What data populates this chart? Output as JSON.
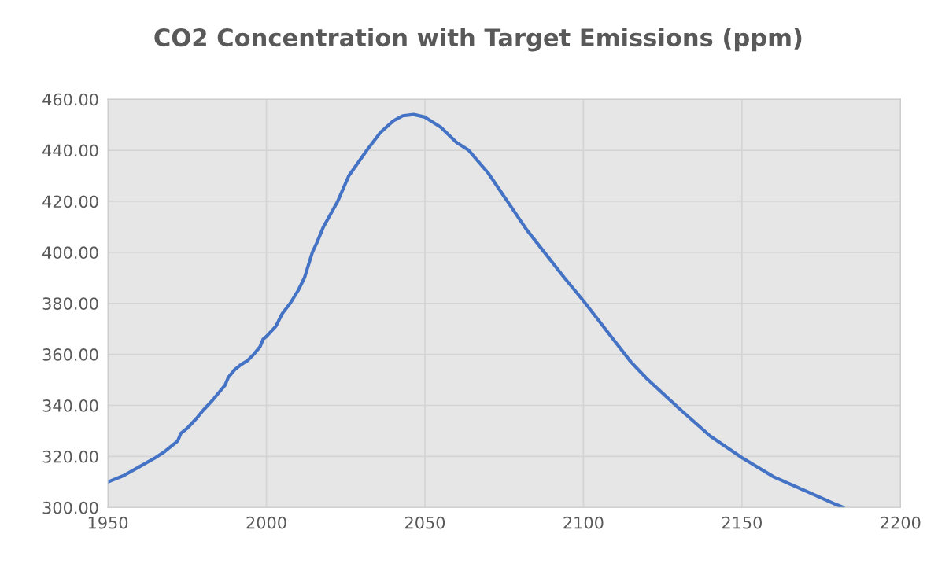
{
  "chart_data": {
    "type": "line",
    "title": "CO2 Concentration with Target Emissions (ppm)",
    "x": [
      1950,
      1955,
      1960,
      1965,
      1968,
      1970,
      1972,
      1973,
      1975,
      1978,
      1980,
      1983,
      1985,
      1987,
      1988,
      1990,
      1992,
      1994,
      1996,
      1998,
      1999,
      2000,
      2003,
      2005,
      2007.5,
      2010,
      2012,
      2014.5,
      2016,
      2018,
      2022.5,
      2026,
      2031.7,
      2036,
      2040,
      2043,
      2046.5,
      2050,
      2055,
      2060,
      2063.8,
      2070,
      2076,
      2082,
      2087.7,
      2094,
      2100,
      2105,
      2110,
      2115,
      2120,
      2130,
      2140,
      2150,
      2160,
      2170,
      2180,
      2182
    ],
    "series": [
      {
        "color": "#4472c4",
        "values": [
          310,
          312.5,
          316,
          319.5,
          322,
          324,
          326,
          329,
          331,
          335,
          338,
          342,
          345,
          348,
          351,
          354,
          356,
          357.5,
          360,
          363,
          366,
          367,
          371,
          376,
          380,
          385,
          390,
          400,
          404,
          410,
          420,
          430,
          440,
          447,
          451.5,
          453.5,
          454,
          453,
          449,
          443,
          440,
          431,
          420,
          409,
          400,
          390,
          381,
          373,
          365,
          357,
          350.5,
          339,
          328,
          319.5,
          312,
          306.5,
          301,
          300
        ]
      }
    ],
    "xlim": [
      1950,
      2200
    ],
    "xticks": [
      1950,
      2000,
      2050,
      2100,
      2150,
      2200
    ],
    "ylim": [
      300,
      460
    ],
    "yticks": [
      {
        "value": 300,
        "label": "300.00"
      },
      {
        "value": 320,
        "label": "320.00"
      },
      {
        "value": 340,
        "label": "340.00"
      },
      {
        "value": 360,
        "label": "360.00"
      },
      {
        "value": 380,
        "label": "380.00"
      },
      {
        "value": 400,
        "label": "400.00"
      },
      {
        "value": 420,
        "label": "420.00"
      },
      {
        "value": 440,
        "label": "440.00"
      },
      {
        "value": 460,
        "label": "460.00"
      }
    ],
    "grid": true,
    "marker": "none",
    "line_style": "solid"
  }
}
